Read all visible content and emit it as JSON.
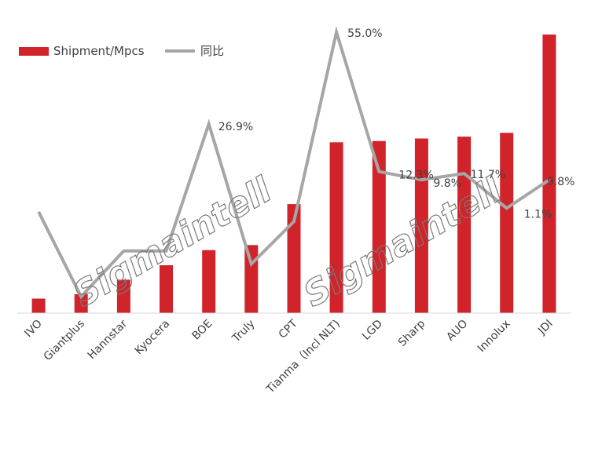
{
  "chart_data": {
    "type": "bar",
    "categories": [
      "IVO",
      "Giantplus",
      "Hannstar",
      "Kyocera",
      "BOE",
      "Truly",
      "CPT",
      "Tianma（Incl NLT)",
      "LGD",
      "Sharp",
      "AUO",
      "Innolux",
      "JDI"
    ],
    "series": [
      {
        "name": "Shipment/Mpcs",
        "type": "bar",
        "color": "#d0232a",
        "values": [
          2.3,
          3.0,
          5.3,
          7.6,
          10.0,
          10.8,
          17.3,
          27.1,
          27.3,
          27.7,
          28.0,
          28.6,
          44.2
        ]
      },
      {
        "name": "同比",
        "type": "line",
        "color": "#a6a6a6",
        "values": [
          0.0,
          -26.0,
          -12.0,
          -12.0,
          26.9,
          -16.0,
          -3.0,
          55.0,
          12.3,
          9.8,
          11.7,
          1.1,
          9.8
        ]
      }
    ],
    "line_labels": [
      "",
      "",
      "",
      "",
      "26.9%",
      "",
      "",
      "55.0%",
      "12.3%",
      "9.8%",
      "11.7%",
      "1.1%",
      "9.8%"
    ],
    "legend": [
      "Shipment/Mpcs",
      "同比"
    ],
    "legend_position": "top-left",
    "watermark": "Sigmaintell",
    "grid": false
  }
}
